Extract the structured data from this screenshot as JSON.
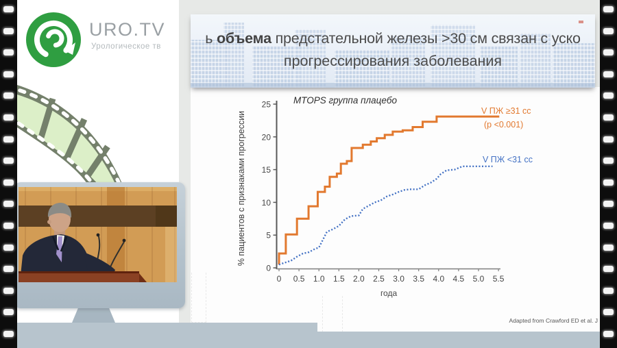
{
  "brand": {
    "name": "URO.TV",
    "tagline": "Урологическое тв",
    "logo_color": "#2f9e41"
  },
  "slide": {
    "title": {
      "prefix": "ь ",
      "bold": "объема",
      "suffix": " предстательной железы >30 см связан с уско",
      "line2": "прогрессирования заболевания"
    },
    "attribution": "Adapted from Crawford ED et al. J"
  },
  "chart_data": {
    "type": "line",
    "title": "MTOPS группа плацебо",
    "xlabel": "года",
    "ylabel": "% пациентов с признаками прогрессии",
    "xlim": [
      0,
      5.5
    ],
    "ylim": [
      0,
      25
    ],
    "x_ticks": [
      "0",
      "0.5",
      "1.0",
      "1.5",
      "2.0",
      "2.5",
      "3.0",
      "3.5",
      "4.0",
      "4.5",
      "5.0",
      "5.5"
    ],
    "y_ticks": [
      0,
      5,
      10,
      15,
      20,
      25
    ],
    "grid": false,
    "legend_position": "right",
    "series": [
      {
        "name": "V ПЖ ≥31 cc",
        "annotation": "(p <0.001)",
        "color": "#E2792F",
        "line_style": "solid_step",
        "points": [
          [
            0,
            2.2
          ],
          [
            0.17,
            5.1
          ],
          [
            0.45,
            7.5
          ],
          [
            0.74,
            9.4
          ],
          [
            0.97,
            11.6
          ],
          [
            1.15,
            12.4
          ],
          [
            1.27,
            13.9
          ],
          [
            1.45,
            14.4
          ],
          [
            1.55,
            15.9
          ],
          [
            1.7,
            16.3
          ],
          [
            1.82,
            18.3
          ],
          [
            2.1,
            18.8
          ],
          [
            2.3,
            19.3
          ],
          [
            2.45,
            19.8
          ],
          [
            2.65,
            20.3
          ],
          [
            2.85,
            20.8
          ],
          [
            3.1,
            21.0
          ],
          [
            3.35,
            21.5
          ],
          [
            3.6,
            22.3
          ],
          [
            3.95,
            23.1
          ],
          [
            5.52,
            23.1
          ]
        ]
      },
      {
        "name": "V ПЖ <31 cc",
        "annotation": "",
        "color": "#4472C4",
        "line_style": "dotted",
        "points": [
          [
            0,
            0.5
          ],
          [
            0.15,
            0.8
          ],
          [
            0.3,
            1.1
          ],
          [
            0.45,
            1.7
          ],
          [
            0.6,
            2.2
          ],
          [
            0.75,
            2.4
          ],
          [
            0.9,
            2.9
          ],
          [
            1.0,
            3.1
          ],
          [
            1.1,
            4.3
          ],
          [
            1.2,
            5.5
          ],
          [
            1.35,
            5.9
          ],
          [
            1.5,
            6.4
          ],
          [
            1.65,
            7.4
          ],
          [
            1.8,
            7.9
          ],
          [
            2.0,
            8.0
          ],
          [
            2.1,
            9.0
          ],
          [
            2.25,
            9.5
          ],
          [
            2.4,
            10.0
          ],
          [
            2.55,
            10.3
          ],
          [
            2.7,
            10.9
          ],
          [
            2.85,
            11.2
          ],
          [
            3.0,
            11.6
          ],
          [
            3.15,
            11.9
          ],
          [
            3.3,
            12.0
          ],
          [
            3.5,
            12.0
          ],
          [
            3.65,
            12.6
          ],
          [
            3.8,
            13.0
          ],
          [
            3.95,
            13.6
          ],
          [
            4.05,
            14.3
          ],
          [
            4.2,
            14.9
          ],
          [
            4.4,
            15.0
          ],
          [
            4.6,
            15.5
          ],
          [
            5.35,
            15.5
          ]
        ]
      }
    ]
  }
}
